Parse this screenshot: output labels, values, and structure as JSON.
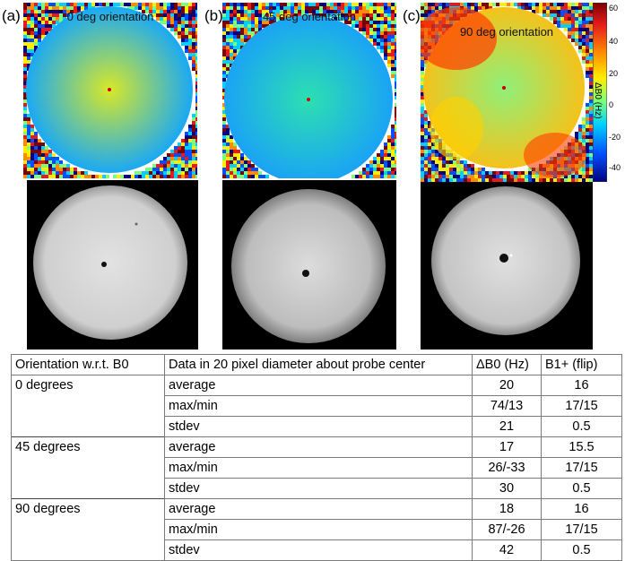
{
  "panels": [
    {
      "label": "(a)",
      "caption": "0 deg orientation"
    },
    {
      "label": "(b)",
      "caption": "45 deg orientation"
    },
    {
      "label": "(c)",
      "caption": "90 deg orientation"
    }
  ],
  "colorbar": {
    "title": "ΔB0 (Hz)",
    "ticks": [
      "60",
      "40",
      "20",
      "0",
      "-20",
      "-40"
    ],
    "colors": [
      "#7a0000",
      "#e41a1c",
      "#ff8c00",
      "#ffee00",
      "#7cff7a",
      "#00d0ff",
      "#0050ff",
      "#000080"
    ]
  },
  "table": {
    "headers": [
      "Orientation w.r.t. B0",
      "Data in 20 pixel diameter about probe center",
      "ΔB0 (Hz)",
      "B1+ (flip)"
    ],
    "groups": [
      {
        "orientation": "0 degrees",
        "rows": [
          {
            "stat": "average",
            "db0": "20",
            "b1": "16"
          },
          {
            "stat": "max/min",
            "db0": "74/13",
            "b1": "17/15"
          },
          {
            "stat": "stdev",
            "db0": "21",
            "b1": "0.5"
          }
        ]
      },
      {
        "orientation": "45 degrees",
        "rows": [
          {
            "stat": "average",
            "db0": "17",
            "b1": "15.5"
          },
          {
            "stat": "max/min",
            "db0": "26/-33",
            "b1": "17/15"
          },
          {
            "stat": "stdev",
            "db0": "30",
            "b1": "0.5"
          }
        ]
      },
      {
        "orientation": "90 degrees",
        "rows": [
          {
            "stat": "average",
            "db0": "18",
            "b1": "16"
          },
          {
            "stat": "max/min",
            "db0": "87/-26",
            "b1": "17/15"
          },
          {
            "stat": "stdev",
            "db0": "42",
            "b1": "0.5"
          }
        ]
      }
    ]
  }
}
